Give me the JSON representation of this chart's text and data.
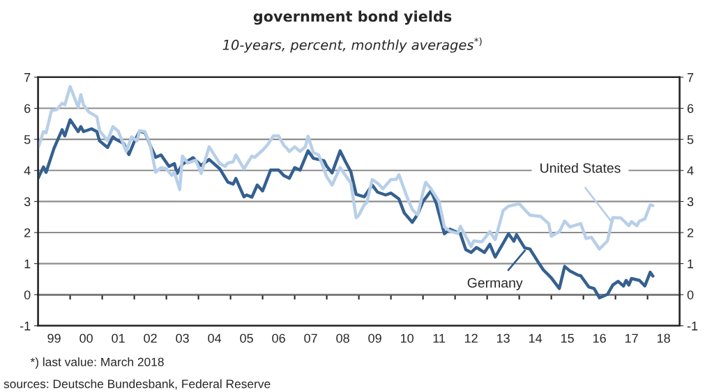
{
  "chart_data": {
    "type": "line",
    "title": "government bond yields",
    "subtitle": "10-years, percent, monthly averages$^{*)}$",
    "xlim": [
      "1999-01",
      "2019-01"
    ],
    "xticks": [
      {
        "value": "1999-07",
        "label": "99"
      },
      {
        "value": "2000-07",
        "label": "00"
      },
      {
        "value": "2001-07",
        "label": "01"
      },
      {
        "value": "2002-07",
        "label": "02"
      },
      {
        "value": "2003-07",
        "label": "03"
      },
      {
        "value": "2004-07",
        "label": "04"
      },
      {
        "value": "2005-07",
        "label": "05"
      },
      {
        "value": "2006-07",
        "label": "06"
      },
      {
        "value": "2007-07",
        "label": "07"
      },
      {
        "value": "2008-07",
        "label": "08"
      },
      {
        "value": "2009-07",
        "label": "09"
      },
      {
        "value": "2010-07",
        "label": "10"
      },
      {
        "value": "2011-07",
        "label": "11"
      },
      {
        "value": "2012-07",
        "label": "12"
      },
      {
        "value": "2013-07",
        "label": "13"
      },
      {
        "value": "2014-07",
        "label": "14"
      },
      {
        "value": "2015-07",
        "label": "15"
      },
      {
        "value": "2016-07",
        "label": "16"
      },
      {
        "value": "2017-07",
        "label": "17"
      },
      {
        "value": "2018-07",
        "label": "18"
      },
      {
        "value": "2000-01",
        "label": null
      },
      {
        "value": "2001-01",
        "label": null
      },
      {
        "value": "2002-01",
        "label": null
      },
      {
        "value": "2003-01",
        "label": null
      },
      {
        "value": "2004-01",
        "label": null
      },
      {
        "value": "2005-01",
        "label": null
      },
      {
        "value": "2006-01",
        "label": null
      },
      {
        "value": "2007-01",
        "label": null
      },
      {
        "value": "2008-01",
        "label": null
      },
      {
        "value": "2009-01",
        "label": null
      },
      {
        "value": "2010-01",
        "label": null
      },
      {
        "value": "2011-01",
        "label": null
      },
      {
        "value": "2012-01",
        "label": null
      },
      {
        "value": "2013-01",
        "label": null
      },
      {
        "value": "2014-01",
        "label": null
      },
      {
        "value": "2015-01",
        "label": null
      },
      {
        "value": "2016-01",
        "label": null
      },
      {
        "value": "2017-01",
        "label": null
      },
      {
        "value": "2018-01",
        "label": null
      }
    ],
    "ylim": [
      -1,
      7
    ],
    "yticks": [
      -1,
      0,
      1,
      2,
      3,
      4,
      5,
      6,
      7
    ],
    "y2lim": [
      -1,
      7
    ],
    "y2ticks": [
      -1,
      0,
      1,
      2,
      3,
      4,
      5,
      6,
      7
    ],
    "grid": "y",
    "marker": "none",
    "line_style": "solid",
    "annotations": [
      "*) last value: March 2018",
      "sources: Deutsche Bundesbank, Federal Reserve"
    ],
    "series": [
      {
        "name": "Germany",
        "color": "#35608f",
        "x": [
          "1999-01",
          "1999-03",
          "1999-04",
          "1999-07",
          "1999-10",
          "1999-11",
          "2000-01",
          "2000-04",
          "2000-05",
          "2000-06",
          "2000-09",
          "2000-11",
          "2000-12",
          "2001-03",
          "2001-05",
          "2001-06",
          "2001-09",
          "2001-11",
          "2002-01",
          "2002-03",
          "2002-05",
          "2002-07",
          "2002-09",
          "2002-11",
          "2003-02",
          "2003-04",
          "2003-05",
          "2003-07",
          "2003-11",
          "2004-02",
          "2004-05",
          "2004-09",
          "2004-12",
          "2005-02",
          "2005-03",
          "2005-06",
          "2005-07",
          "2005-09",
          "2005-11",
          "2006-01",
          "2006-04",
          "2006-07",
          "2006-09",
          "2006-11",
          "2007-01",
          "2007-03",
          "2007-06",
          "2007-08",
          "2007-12",
          "2008-01",
          "2008-03",
          "2008-06",
          "2008-08",
          "2008-10",
          "2008-12",
          "2009-03",
          "2009-06",
          "2009-08",
          "2009-11",
          "2010-01",
          "2010-04",
          "2010-06",
          "2010-09",
          "2010-11",
          "2011-01",
          "2011-04",
          "2011-06",
          "2011-09",
          "2011-11",
          "2012-03",
          "2012-05",
          "2012-07",
          "2012-09",
          "2012-12",
          "2013-02",
          "2013-04",
          "2013-09",
          "2013-11",
          "2013-12",
          "2014-03",
          "2014-05",
          "2014-08",
          "2014-10",
          "2015-01",
          "2015-04",
          "2015-06",
          "2015-08",
          "2015-11",
          "2015-12",
          "2016-03",
          "2016-05",
          "2016-07",
          "2016-10",
          "2016-12",
          "2017-02",
          "2017-04",
          "2017-05",
          "2017-06",
          "2017-07",
          "2017-10",
          "2017-12",
          "2018-02",
          "2018-03"
        ],
        "values": [
          3.75,
          4.11,
          3.94,
          4.72,
          5.31,
          5.11,
          5.63,
          5.25,
          5.41,
          5.25,
          5.34,
          5.25,
          4.95,
          4.74,
          5.08,
          5.01,
          4.87,
          4.51,
          4.93,
          5.26,
          5.22,
          4.8,
          4.42,
          4.5,
          4.13,
          4.22,
          3.9,
          4.2,
          4.41,
          4.16,
          4.35,
          4.05,
          3.62,
          3.56,
          3.74,
          3.15,
          3.21,
          3.14,
          3.53,
          3.34,
          4.01,
          4.01,
          3.83,
          3.75,
          4.09,
          4.01,
          4.63,
          4.39,
          4.31,
          4.13,
          3.92,
          4.63,
          4.28,
          3.96,
          3.23,
          3.15,
          3.53,
          3.3,
          3.21,
          3.27,
          3.08,
          2.63,
          2.33,
          2.59,
          3.0,
          3.34,
          2.93,
          1.96,
          2.11,
          1.96,
          1.45,
          1.36,
          1.52,
          1.36,
          1.62,
          1.21,
          1.96,
          1.72,
          1.93,
          1.51,
          1.47,
          1.06,
          0.8,
          0.54,
          0.2,
          0.91,
          0.76,
          0.63,
          0.61,
          0.25,
          0.2,
          -0.1,
          0.01,
          0.31,
          0.43,
          0.28,
          0.46,
          0.31,
          0.52,
          0.46,
          0.28,
          0.72,
          0.6
        ]
      },
      {
        "name": "United States",
        "color": "#b8cfe8",
        "x": [
          "1999-01",
          "1999-03",
          "1999-04",
          "1999-06",
          "1999-08",
          "1999-10",
          "1999-11",
          "2000-01",
          "2000-04",
          "2000-05",
          "2000-06",
          "2000-08",
          "2000-11",
          "2000-12",
          "2001-03",
          "2001-05",
          "2001-07",
          "2001-10",
          "2001-12",
          "2002-02",
          "2002-03",
          "2002-05",
          "2002-07",
          "2002-09",
          "2002-11",
          "2003-01",
          "2003-03",
          "2003-04",
          "2003-06",
          "2003-07",
          "2003-09",
          "2003-12",
          "2004-02",
          "2004-05",
          "2004-09",
          "2004-11",
          "2004-12",
          "2005-02",
          "2005-03",
          "2005-06",
          "2005-09",
          "2005-10",
          "2006-01",
          "2006-03",
          "2006-05",
          "2006-07",
          "2006-09",
          "2006-10",
          "2006-11",
          "2007-01",
          "2007-03",
          "2007-05",
          "2007-06",
          "2007-08",
          "2007-10",
          "2008-01",
          "2008-03",
          "2008-06",
          "2008-09",
          "2008-10",
          "2008-12",
          "2009-01",
          "2009-03",
          "2009-04",
          "2009-06",
          "2009-08",
          "2009-10",
          "2010-01",
          "2010-03",
          "2010-04",
          "2010-07",
          "2010-09",
          "2010-11",
          "2011-01",
          "2011-02",
          "2011-04",
          "2011-07",
          "2011-09",
          "2011-11",
          "2012-02",
          "2012-03",
          "2012-07",
          "2012-08",
          "2012-11",
          "2013-02",
          "2013-04",
          "2013-07",
          "2013-09",
          "2014-01",
          "2014-03",
          "2014-05",
          "2014-09",
          "2014-12",
          "2015-01",
          "2015-04",
          "2015-06",
          "2015-08",
          "2015-12",
          "2016-02",
          "2016-04",
          "2016-07",
          "2016-10",
          "2016-12",
          "2017-03",
          "2017-06",
          "2017-07",
          "2017-09",
          "2017-10",
          "2017-12",
          "2018-02",
          "2018-03"
        ],
        "values": [
          4.72,
          5.25,
          5.21,
          5.92,
          5.96,
          6.16,
          6.11,
          6.7,
          6.03,
          6.44,
          6.11,
          5.88,
          5.73,
          5.28,
          4.96,
          5.41,
          5.26,
          4.61,
          5.08,
          4.95,
          5.28,
          5.25,
          4.8,
          3.94,
          4.09,
          4.05,
          3.84,
          3.94,
          3.38,
          4.46,
          4.24,
          4.33,
          3.9,
          4.76,
          4.22,
          4.13,
          4.24,
          4.28,
          4.5,
          4.05,
          4.46,
          4.42,
          4.65,
          4.84,
          5.11,
          5.11,
          4.8,
          4.72,
          4.61,
          4.76,
          4.61,
          4.76,
          5.1,
          4.57,
          4.5,
          3.79,
          3.53,
          4.09,
          3.71,
          3.6,
          2.48,
          2.56,
          2.89,
          2.97,
          3.71,
          3.59,
          3.41,
          3.71,
          3.71,
          3.86,
          3.15,
          2.74,
          2.57,
          3.3,
          3.62,
          3.41,
          3.0,
          2.18,
          2.05,
          1.97,
          2.2,
          1.55,
          1.73,
          1.7,
          2.03,
          1.77,
          2.71,
          2.85,
          2.93,
          2.74,
          2.56,
          2.52,
          2.29,
          1.88,
          2.03,
          2.37,
          2.18,
          2.29,
          1.81,
          1.85,
          1.47,
          1.73,
          2.48,
          2.47,
          2.22,
          2.35,
          2.22,
          2.37,
          2.44,
          2.89,
          2.87
        ]
      }
    ]
  }
}
